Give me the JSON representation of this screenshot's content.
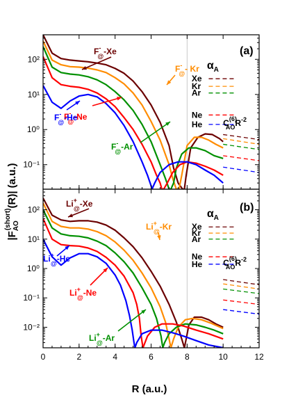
{
  "figure": {
    "ylabel": "|F_AO^(short)(R)| (a.u.)",
    "xlabel": "R (a.u.)"
  },
  "chart_data": [
    {
      "type": "line",
      "panel_label": "(a)",
      "xlabel": "R (a.u.)",
      "ylabel": "|F_AO^(short)(R)| (a.u.)",
      "xlim": [
        0,
        12
      ],
      "ylim": [
        0.02,
        500
      ],
      "yscale": "log",
      "x_ticks": [
        "0",
        "2",
        "4",
        "6",
        "8",
        "10",
        "12"
      ],
      "y_ticks": [
        {
          "v": 0.1,
          "label": "10⁻¹"
        },
        {
          "v": 1,
          "label": "10⁰"
        },
        {
          "v": 10,
          "label": "10¹"
        },
        {
          "v": 100,
          "label": "10²"
        }
      ],
      "colors": {
        "Xe": "#6b0000",
        "Kr": "#ff8c00",
        "Ar": "#009000",
        "Ne": "#ff0000",
        "He": "#0000ff"
      },
      "series": [
        {
          "name": "F@-Xe",
          "color": "#6b0000",
          "x": [
            0,
            0.5,
            1,
            1.5,
            2,
            2.5,
            3,
            3.5,
            4,
            4.5,
            5,
            5.5,
            6,
            6.5,
            7,
            7.25,
            7.5,
            7.75,
            7.85,
            7.95,
            8.2,
            8.6,
            9,
            9.4,
            9.8,
            10
          ],
          "y": [
            500,
            150,
            105,
            95,
            90,
            85,
            78,
            70,
            55,
            40,
            24,
            12,
            5,
            1.6,
            0.35,
            0.08,
            0.03,
            0.02,
            0.02,
            0.05,
            0.3,
            0.6,
            0.75,
            0.72,
            0.55,
            0.45
          ]
        },
        {
          "name": "F@-Kr",
          "color": "#ff8c00",
          "x": [
            0,
            0.5,
            1,
            1.5,
            2,
            2.5,
            3,
            3.5,
            4,
            4.5,
            5,
            5.5,
            6,
            6.5,
            7,
            7.2,
            7.4,
            7.55,
            7.7,
            8.0,
            8.4,
            8.8,
            9.2,
            9.6,
            10
          ],
          "y": [
            330,
            95,
            70,
            62,
            60,
            56,
            50,
            42,
            30,
            20,
            11,
            5,
            1.7,
            0.5,
            0.1,
            0.04,
            0.02,
            0.02,
            0.05,
            0.35,
            0.6,
            0.6,
            0.5,
            0.38,
            0.3
          ]
        },
        {
          "name": "F@-Ar",
          "color": "#009000",
          "x": [
            0,
            0.5,
            1,
            1.5,
            2,
            2.5,
            3,
            3.5,
            4,
            4.5,
            5,
            5.5,
            6,
            6.5,
            6.8,
            7.0,
            7.1,
            7.25,
            7.4,
            7.7,
            8.1,
            8.5,
            9,
            9.5,
            10
          ],
          "y": [
            230,
            60,
            42,
            38,
            36,
            32,
            26,
            19,
            12,
            7,
            3.5,
            1.4,
            0.45,
            0.1,
            0.04,
            0.02,
            0.02,
            0.03,
            0.08,
            0.2,
            0.3,
            0.3,
            0.25,
            0.18,
            0.15
          ]
        },
        {
          "name": "F@-Ne",
          "color": "#ff0000",
          "x": [
            0,
            0.5,
            1,
            1.5,
            2,
            2.5,
            3,
            3.5,
            4,
            4.5,
            5,
            5.5,
            6,
            6.3,
            6.5,
            6.6,
            6.7,
            6.9,
            7.2,
            7.6,
            8,
            8.5,
            9,
            9.5,
            10
          ],
          "y": [
            120,
            30,
            19,
            17,
            16,
            14,
            11,
            7.5,
            4.5,
            2.2,
            1,
            0.38,
            0.12,
            0.05,
            0.03,
            0.02,
            0.02,
            0.03,
            0.06,
            0.1,
            0.12,
            0.11,
            0.09,
            0.07,
            0.05
          ]
        },
        {
          "name": "F@-He",
          "color": "#0000ff",
          "x": [
            0,
            0.5,
            1,
            1.5,
            2,
            2.5,
            3,
            3.5,
            4,
            4.5,
            5,
            5.5,
            5.8,
            6.0,
            6.05,
            6.2,
            6.5,
            7,
            7.5,
            8,
            8.5,
            9,
            9.5,
            10
          ],
          "y": [
            18,
            6,
            4,
            6.5,
            9,
            10,
            8.5,
            5.5,
            3,
            1.3,
            0.45,
            0.12,
            0.05,
            0.025,
            0.02,
            0.03,
            0.06,
            0.1,
            0.12,
            0.12,
            0.1,
            0.07,
            0.05,
            0.03
          ]
        }
      ],
      "tail_dashes": [
        {
          "name": "Xe",
          "color": "#6b0000",
          "y1": 0.72,
          "y2": 0.52
        },
        {
          "name": "Kr",
          "color": "#ff8c00",
          "y1": 0.55,
          "y2": 0.38
        },
        {
          "name": "Ar",
          "color": "#009000",
          "y1": 0.38,
          "y2": 0.27
        },
        {
          "name": "Ne",
          "color": "#ff0000",
          "y1": 0.18,
          "y2": 0.13
        },
        {
          "name": "He",
          "color": "#0000ff",
          "y1": 0.085,
          "y2": 0.06
        }
      ],
      "alpha_dashes": [
        {
          "name": "Xe",
          "color": "#6b0000",
          "y": 28
        },
        {
          "name": "Kr",
          "color": "#ff8c00",
          "y": 17
        },
        {
          "name": "Ar",
          "color": "#009000",
          "y": 11
        },
        {
          "name": "Ne",
          "color": "#ff0000",
          "y": 2.6
        },
        {
          "name": "He",
          "color": "#0000ff",
          "y": 1.4
        }
      ],
      "annotations": {
        "alpha": "α",
        "alpha_sub": "A",
        "c6_main": "C",
        "c6_sub": "AO",
        "c6_sup": "(6)",
        "c6_tail": "R",
        "c6_tail_sup": "-2"
      },
      "curve_labels": [
        {
          "ion": "F",
          "charge": "-",
          "sub": "@",
          "atom": "-Xe",
          "color": "#6b0000"
        },
        {
          "ion": "F",
          "charge": "-",
          "sub": "@",
          "atom": "- Kr",
          "color": "#ff8c00"
        },
        {
          "ion": "F",
          "charge": "-",
          "sub": "@",
          "atom": "-Ne",
          "color": "#ff0000"
        },
        {
          "ion": "F",
          "charge": "-",
          "sub": "@",
          "atom": "-He",
          "color": "#0000ff"
        },
        {
          "ion": "F",
          "charge": "-",
          "sub": "@",
          "atom": "-Ar",
          "color": "#009000"
        }
      ]
    },
    {
      "type": "line",
      "panel_label": "(b)",
      "xlabel": "R (a.u.)",
      "ylabel": "|F_AO^(short)(R)| (a.u.)",
      "xlim": [
        0,
        12
      ],
      "ylim": [
        0.002,
        500
      ],
      "yscale": "log",
      "x_ticks": [
        "0",
        "2",
        "4",
        "6",
        "8",
        "10",
        "12"
      ],
      "y_ticks": [
        {
          "v": 0.01,
          "label": "10⁻²"
        },
        {
          "v": 0.1,
          "label": "10⁻¹"
        },
        {
          "v": 1,
          "label": "10⁰"
        },
        {
          "v": 10,
          "label": "10¹"
        },
        {
          "v": 100,
          "label": "10²"
        }
      ],
      "colors": {
        "Xe": "#6b0000",
        "Kr": "#ff8c00",
        "Ar": "#009000",
        "Ne": "#ff0000",
        "He": "#0000ff"
      },
      "series": [
        {
          "name": "Li@+-Xe",
          "color": "#6b0000",
          "x": [
            0,
            0.5,
            1,
            1.5,
            2,
            2.5,
            3,
            3.5,
            4,
            4.5,
            5,
            5.5,
            6,
            6.5,
            7,
            7.4,
            7.7,
            7.85,
            7.95,
            8.1,
            8.4,
            8.8,
            9.2,
            9.6,
            10
          ],
          "y": [
            250,
            65,
            45,
            40,
            42,
            42,
            38,
            30,
            20,
            11,
            5.5,
            2.3,
            0.8,
            0.25,
            0.06,
            0.015,
            0.004,
            0.002,
            0.004,
            0.012,
            0.022,
            0.022,
            0.018,
            0.013,
            0.01
          ]
        },
        {
          "name": "Li@+-Kr",
          "color": "#ff8c00",
          "x": [
            0,
            0.5,
            1,
            1.5,
            2,
            2.5,
            3,
            3.5,
            4,
            4.5,
            5,
            5.5,
            6,
            6.5,
            6.8,
            7.0,
            7.1,
            7.25,
            7.5,
            7.9,
            8.3,
            8.8,
            9.3,
            10
          ],
          "y": [
            170,
            40,
            27,
            24,
            24,
            22,
            18,
            13,
            8,
            4.2,
            1.9,
            0.7,
            0.22,
            0.05,
            0.015,
            0.004,
            0.002,
            0.004,
            0.01,
            0.018,
            0.02,
            0.018,
            0.014,
            0.009
          ]
        },
        {
          "name": "Li@+-Ar",
          "color": "#009000",
          "x": [
            0,
            0.5,
            1,
            1.5,
            2,
            2.5,
            3,
            3.5,
            4,
            4.5,
            5,
            5.5,
            6,
            6.3,
            6.55,
            6.65,
            6.75,
            7,
            7.4,
            7.9,
            8.5,
            9,
            9.5,
            10
          ],
          "y": [
            100,
            24,
            15,
            13,
            12.5,
            11,
            8.5,
            6,
            3.4,
            1.7,
            0.7,
            0.22,
            0.06,
            0.02,
            0.005,
            0.002,
            0.003,
            0.006,
            0.01,
            0.013,
            0.012,
            0.01,
            0.008,
            0.006
          ]
        },
        {
          "name": "Li@+-Ne",
          "color": "#ff0000",
          "x": [
            0,
            0.5,
            1,
            1.5,
            2,
            2.5,
            3,
            3.5,
            4,
            4.5,
            5,
            5.2,
            5.35,
            5.45,
            5.55,
            5.8,
            6.2,
            6.6,
            7.2,
            7.8,
            8.5,
            9.2,
            10
          ],
          "y": [
            50,
            10,
            6.5,
            6,
            5.8,
            5,
            3.8,
            2.4,
            1.3,
            0.55,
            0.15,
            0.06,
            0.02,
            0.005,
            0.002,
            0.005,
            0.01,
            0.013,
            0.013,
            0.011,
            0.008,
            0.006,
            0.004
          ]
        },
        {
          "name": "Li@+-He",
          "color": "#0000ff",
          "x": [
            0,
            0.5,
            1,
            1.5,
            2,
            2.5,
            3,
            3.5,
            4,
            4.3,
            4.6,
            4.8,
            4.95,
            5.05,
            5.1,
            5.2,
            5.5,
            6,
            6.6,
            7.2,
            7.8,
            8.5,
            9.2,
            10
          ],
          "y": [
            10,
            2.5,
            1.3,
            2.3,
            3.2,
            3.2,
            2.5,
            1.5,
            0.6,
            0.27,
            0.08,
            0.025,
            0.008,
            0.003,
            0.002,
            0.003,
            0.006,
            0.008,
            0.008,
            0.0065,
            0.005,
            0.0035,
            0.0025,
            0.002
          ]
        }
      ],
      "tail_dashes": [
        {
          "name": "Xe",
          "color": "#6b0000",
          "y1": 0.42,
          "y2": 0.28
        },
        {
          "name": "Kr",
          "color": "#ff8c00",
          "y1": 0.3,
          "y2": 0.2
        },
        {
          "name": "Ar",
          "color": "#009000",
          "y1": 0.2,
          "y2": 0.14
        },
        {
          "name": "Ne",
          "color": "#ff0000",
          "y1": 0.085,
          "y2": 0.06
        },
        {
          "name": "He",
          "color": "#0000ff",
          "y1": 0.04,
          "y2": 0.028
        }
      ],
      "alpha_dashes": [
        {
          "name": "Xe",
          "color": "#6b0000",
          "y": 26
        },
        {
          "name": "Kr",
          "color": "#ff8c00",
          "y": 16
        },
        {
          "name": "Ar",
          "color": "#009000",
          "y": 10
        },
        {
          "name": "Ne",
          "color": "#ff0000",
          "y": 2.5
        },
        {
          "name": "He",
          "color": "#0000ff",
          "y": 1.4
        }
      ],
      "annotations": {
        "alpha": "α",
        "alpha_sub": "A",
        "c6_main": "C",
        "c6_sub": "AO",
        "c6_sup": "(6)",
        "c6_tail": "R",
        "c6_tail_sup": "-2"
      },
      "curve_labels": [
        {
          "ion": "Li",
          "charge": "+",
          "sub": "@",
          "atom": "-Xe",
          "color": "#6b0000"
        },
        {
          "ion": "Li",
          "charge": "+",
          "sub": "@",
          "atom": "-Kr",
          "color": "#ff8c00"
        },
        {
          "ion": "Li",
          "charge": "+",
          "sub": "@",
          "atom": "-He",
          "color": "#0000ff"
        },
        {
          "ion": "Li",
          "charge": "+",
          "sub": "@",
          "atom": "-Ne",
          "color": "#ff0000"
        },
        {
          "ion": "Li",
          "charge": "+",
          "sub": "@",
          "atom": "-Ar",
          "color": "#009000"
        }
      ]
    }
  ]
}
